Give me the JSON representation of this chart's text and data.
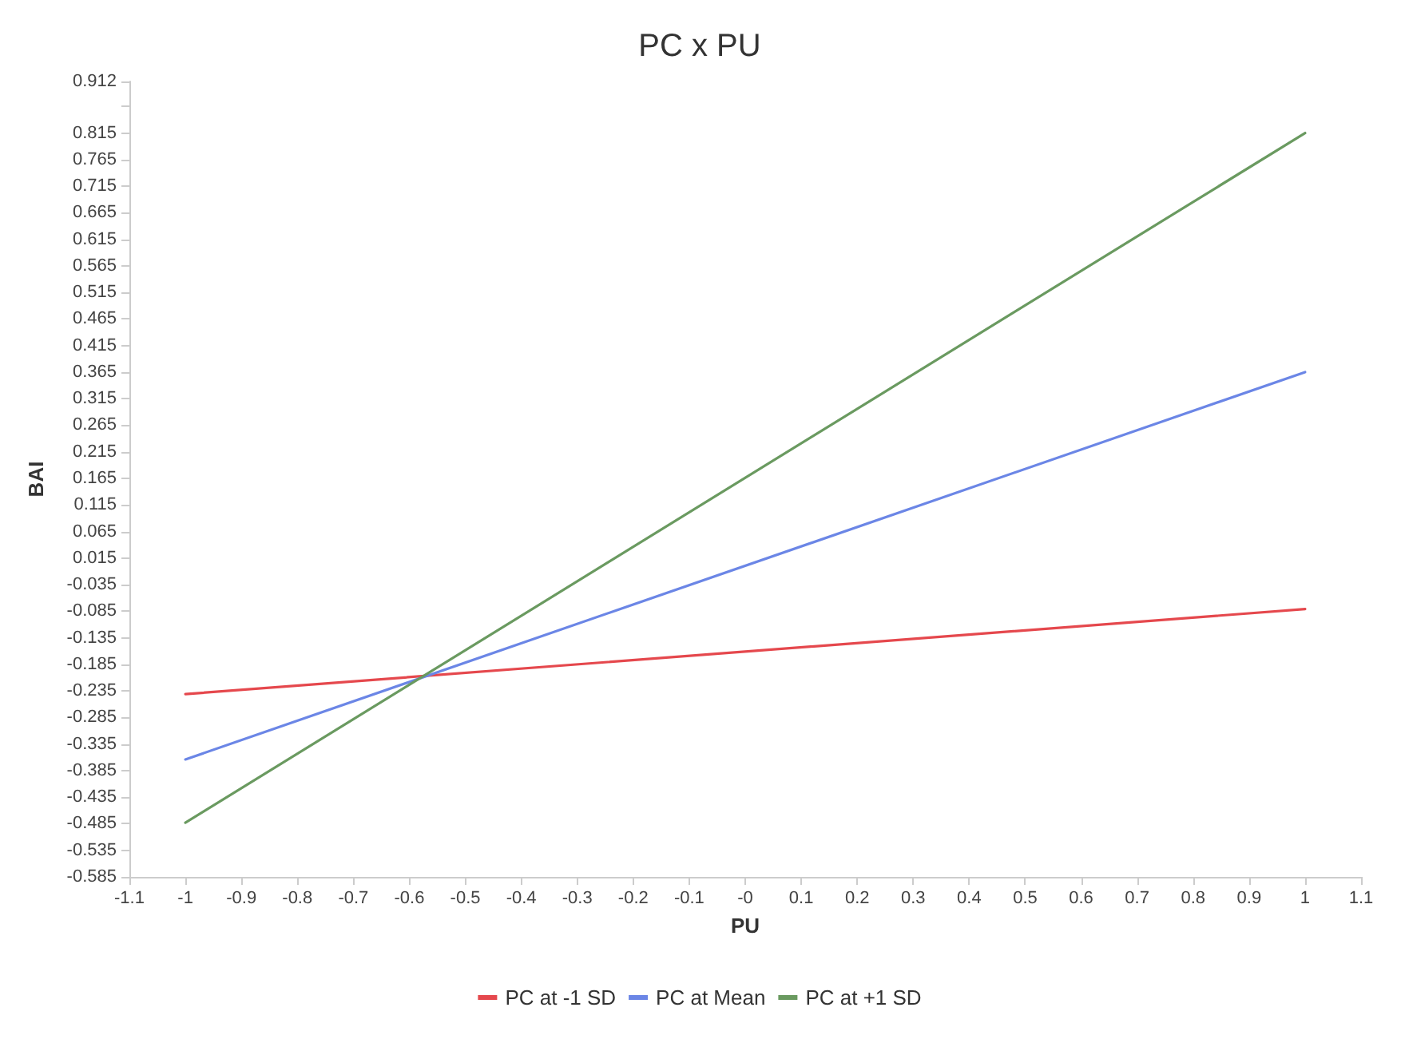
{
  "chart_data": {
    "type": "line",
    "title": "PC x PU",
    "xlabel": "PU",
    "ylabel": "BAI",
    "x": [
      -1,
      1
    ],
    "series": [
      {
        "name": "PC at -1 SD",
        "color": "#e5484d",
        "values": [
          -0.241,
          -0.081
        ]
      },
      {
        "name": "PC at Mean",
        "color": "#6b86e6",
        "values": [
          -0.364,
          0.365
        ]
      },
      {
        "name": "PC at +1 SD",
        "color": "#6a9a60",
        "values": [
          -0.483,
          0.815
        ]
      }
    ],
    "xlim": [
      -1.1,
      1.1
    ],
    "xticks": [
      -1.1,
      -1,
      -0.9,
      -0.8,
      -0.7,
      -0.6,
      -0.5,
      -0.4,
      -0.3,
      -0.2,
      -0.1,
      {
        "value": 0,
        "label": "-0"
      },
      0.1,
      0.2,
      0.3,
      0.4,
      0.5,
      0.6,
      0.7,
      0.8,
      0.9,
      1,
      1.1
    ],
    "ylim": [
      -0.585,
      0.912
    ],
    "yticks": [
      0.912,
      {
        "value": 0.865,
        "label": null
      },
      0.815,
      0.765,
      0.715,
      0.665,
      0.615,
      0.565,
      0.515,
      0.465,
      0.415,
      0.365,
      0.315,
      0.265,
      0.215,
      0.165,
      0.115,
      0.065,
      0.015,
      -0.035,
      -0.085,
      -0.135,
      -0.185,
      -0.235,
      -0.285,
      -0.335,
      -0.385,
      -0.435,
      -0.485,
      -0.535,
      -0.585
    ],
    "grid": false,
    "legend": "bottom",
    "marker": "none",
    "line_style": "solid"
  }
}
